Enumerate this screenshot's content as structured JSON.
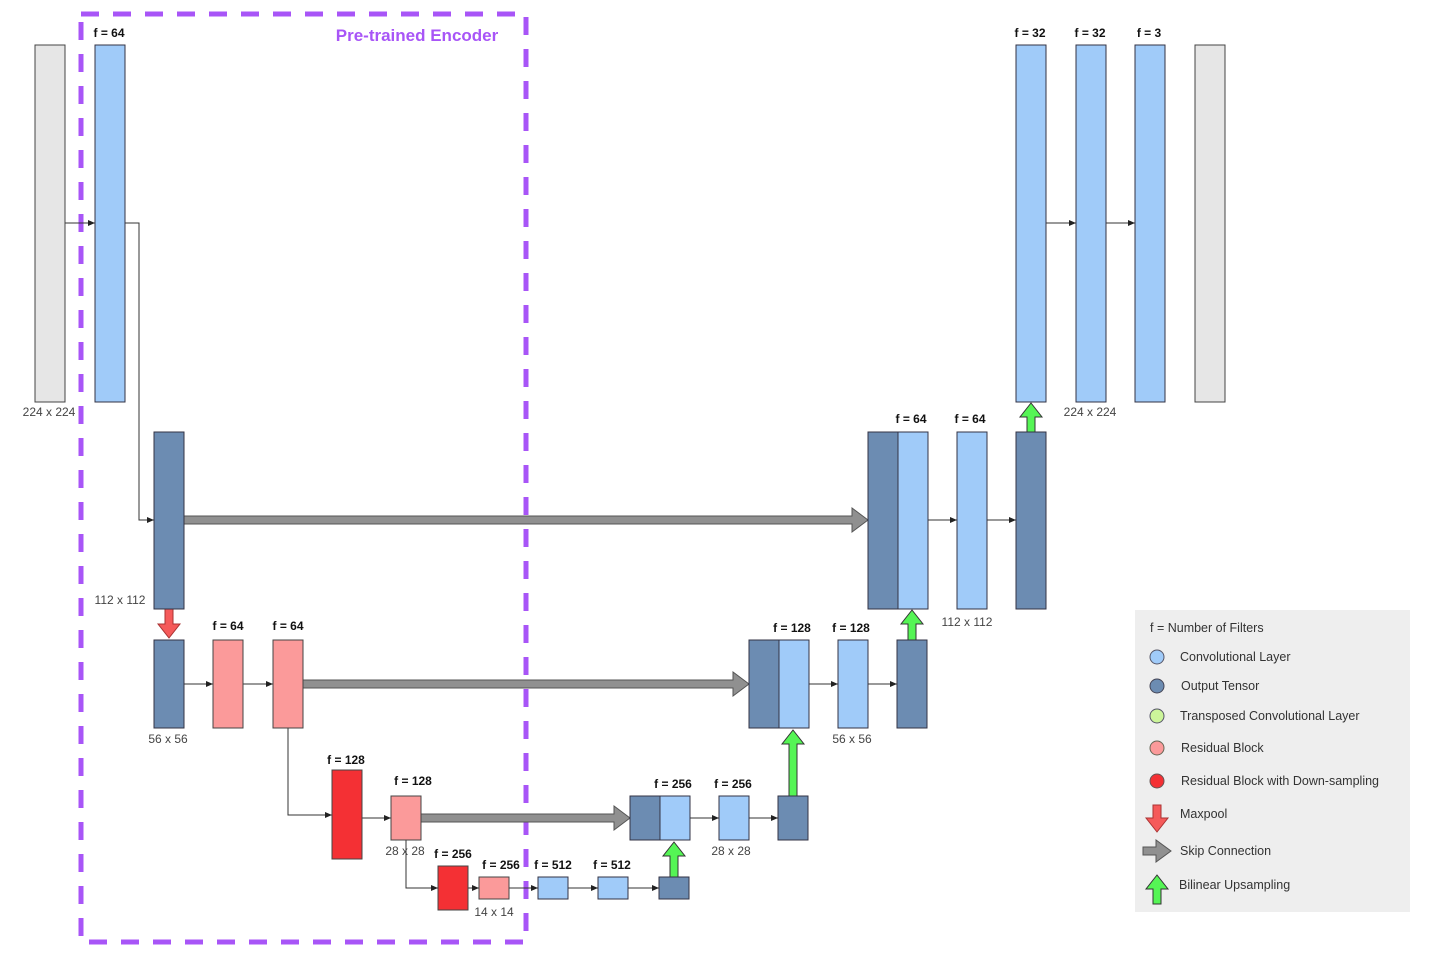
{
  "encoder_title": "Pre-trained Encoder",
  "colors": {
    "convolutional": "#a0cbf9",
    "output_tensor": "#6c8cb2",
    "transposed_conv": "#ccf59a",
    "residual": "#fb9a9a",
    "residual_down": "#f43034",
    "maxpool": "#f55a5a",
    "skip": "#909090",
    "upsampling": "#55f555",
    "encoder_border": "#a855f7",
    "input_output": "#e6e6e6"
  },
  "filters": {
    "enc1": "f = 64",
    "enc_res1": "f = 64",
    "enc_res2": "f = 64",
    "enc_resd3": "f = 128",
    "enc_res3": "f = 128",
    "enc_resd4": "f = 256",
    "enc_res4": "f = 256",
    "bott1": "f = 512",
    "bott2": "f = 512",
    "dec4a": "f = 256",
    "dec4b": "f = 256",
    "dec3a": "f = 128",
    "dec3b": "f = 128",
    "dec2a": "f = 64",
    "dec2b": "f = 64",
    "dec1a": "f = 32",
    "dec1b": "f = 32",
    "dec1c": "f = 3"
  },
  "dims": {
    "in224": "224 x 224",
    "enc112": "112 x 112",
    "enc56": "56 x 56",
    "enc28": "28 x 28",
    "enc14": "14 x 14",
    "dec28": "28 x 28",
    "dec56": "56 x 56",
    "dec112": "112 x 112",
    "out224": "224 x 224"
  },
  "legend": {
    "filters_note": "f  =  Number of Filters",
    "items": [
      {
        "label": "Convolutional Layer",
        "icon": "circle"
      },
      {
        "label": "Output Tensor",
        "icon": "circle"
      },
      {
        "label": "Transposed Convolutional Layer",
        "icon": "circle"
      },
      {
        "label": "Residual Block",
        "icon": "circle"
      },
      {
        "label": "Residual Block with Down-sampling",
        "icon": "circle"
      },
      {
        "label": "Maxpool",
        "icon": "arrow-down"
      },
      {
        "label": "Skip Connection",
        "icon": "arrow-right"
      },
      {
        "label": "Bilinear Upsampling",
        "icon": "arrow-up"
      }
    ]
  }
}
